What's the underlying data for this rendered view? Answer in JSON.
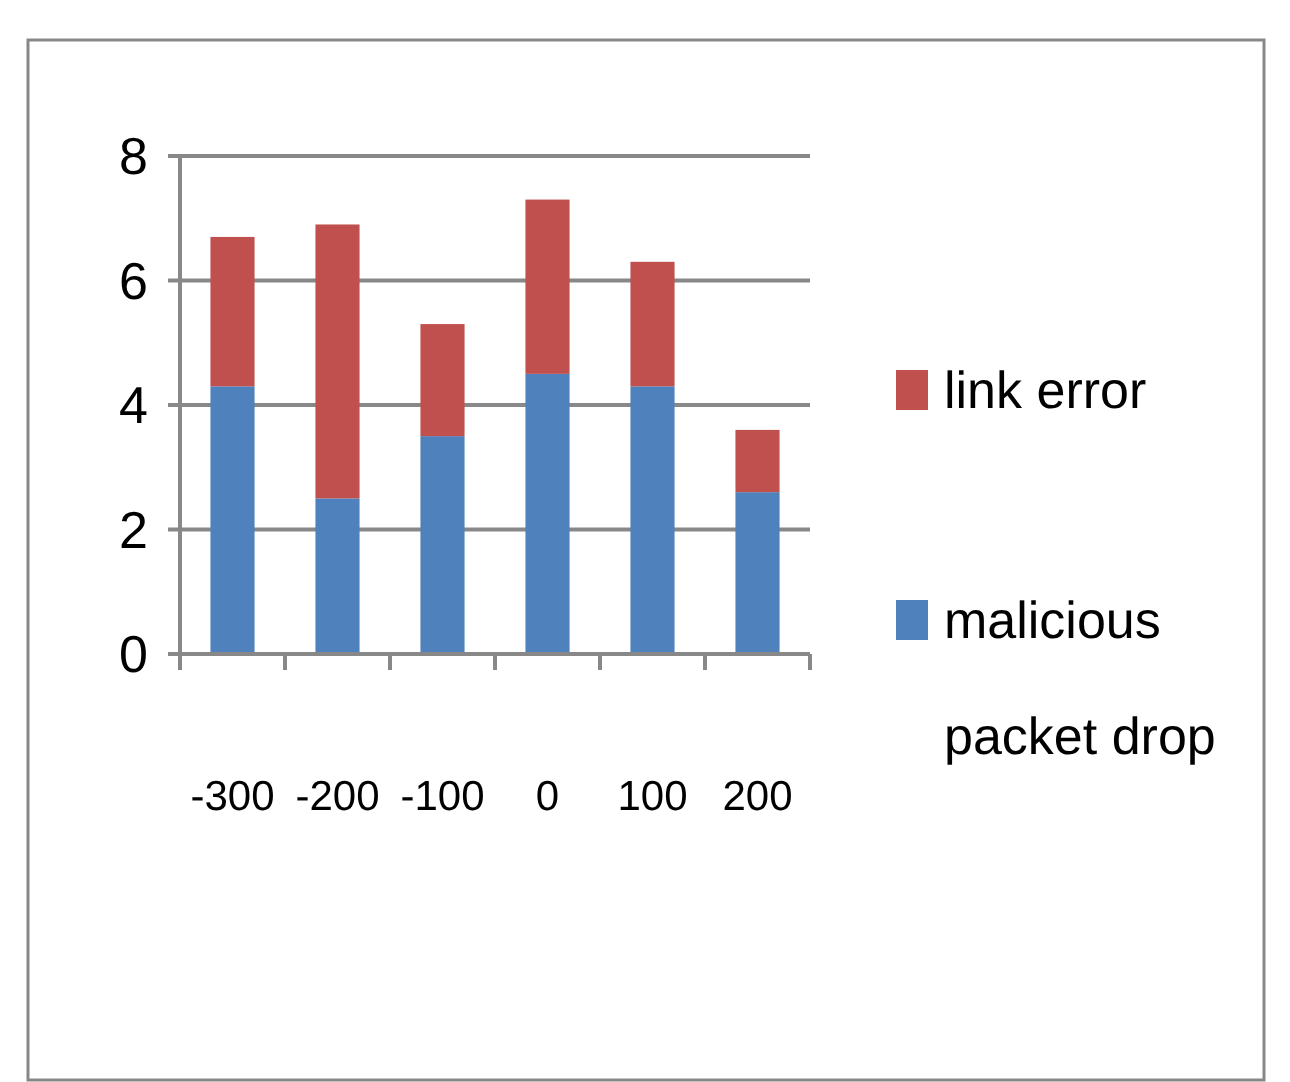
{
  "chart_data": {
    "type": "bar",
    "stacked": true,
    "categories": [
      "-300",
      "-200",
      "-100",
      "0",
      "100",
      "200"
    ],
    "series": [
      {
        "name": "malicious packet drop",
        "color": "#4f81bd",
        "values": [
          4.3,
          2.5,
          3.5,
          4.5,
          4.3,
          2.6
        ]
      },
      {
        "name": "link error",
        "color": "#c0504d",
        "values": [
          2.4,
          4.4,
          1.8,
          2.8,
          2.0,
          1.0
        ]
      }
    ],
    "ylim": [
      0,
      8
    ],
    "yticks": [
      0,
      2,
      4,
      6,
      8
    ],
    "grid": "y",
    "legend": "right"
  }
}
